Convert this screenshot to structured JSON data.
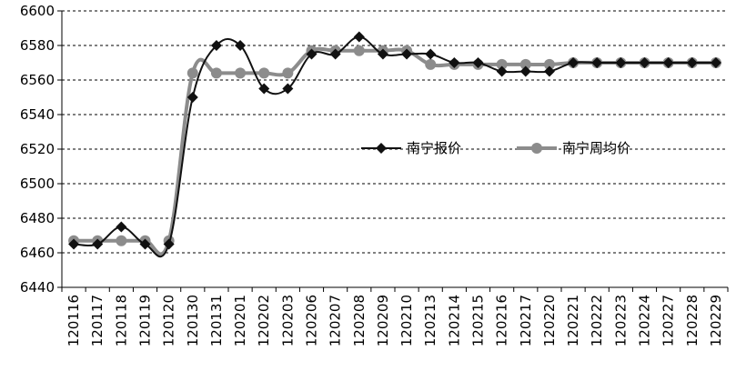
{
  "chart_data": {
    "type": "line",
    "categories": [
      "120116",
      "120117",
      "120118",
      "120119",
      "120120",
      "120130",
      "120131",
      "120201",
      "120202",
      "120203",
      "120206",
      "120207",
      "120208",
      "120209",
      "120210",
      "120213",
      "120214",
      "120215",
      "120216",
      "120217",
      "120220",
      "120221",
      "120222",
      "120223",
      "120224",
      "120227",
      "120228",
      "120229"
    ],
    "series": [
      {
        "name": "南宁报价",
        "color": "#111111",
        "marker": "diamond",
        "values": [
          6465,
          6465,
          6475,
          6465,
          6465,
          6550,
          6580,
          6580,
          6555,
          6555,
          6575,
          6575,
          6585,
          6575,
          6575,
          6575,
          6570,
          6570,
          6565,
          6565,
          6565,
          6570,
          6570,
          6570,
          6570,
          6570,
          6570,
          6570
        ]
      },
      {
        "name": "南宁周均价",
        "color": "#8c8c8c",
        "marker": "circle",
        "values": [
          6467,
          6467,
          6467,
          6467,
          6467,
          6564,
          6564,
          6564,
          6564,
          6564,
          6577,
          6577,
          6577,
          6577,
          6577,
          6569,
          6569,
          6569,
          6569,
          6569,
          6569,
          6570,
          6570,
          6570,
          6570,
          6570,
          6570,
          6570
        ]
      }
    ],
    "ylim": [
      6440,
      6600
    ],
    "yticks": [
      6440,
      6460,
      6480,
      6500,
      6520,
      6540,
      6560,
      6580,
      6600
    ],
    "grid": true,
    "legend": "center-right"
  }
}
